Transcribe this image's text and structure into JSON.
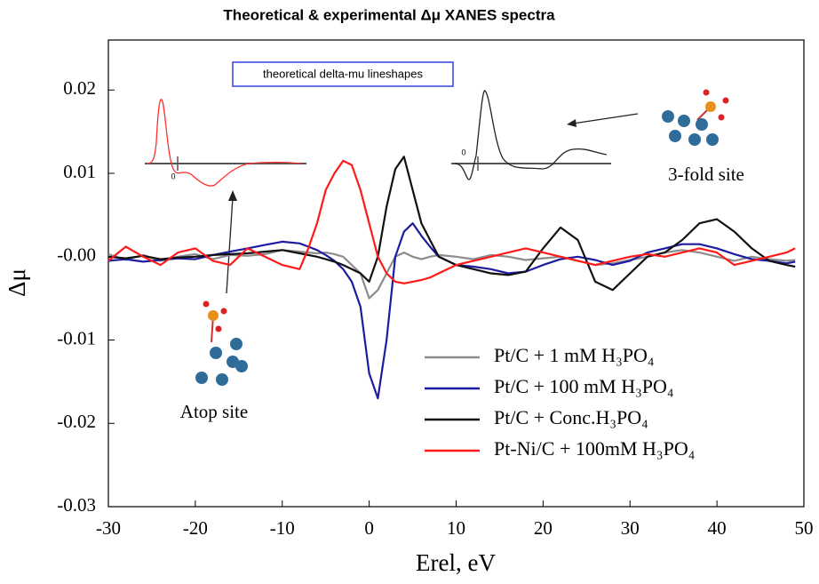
{
  "chart_data": {
    "type": "line",
    "title": "Theoretical & experimental Δμ XANES spectra",
    "x_label": "Erel, eV",
    "y_label": "Δμ",
    "xlim": [
      -30,
      50
    ],
    "ylim": [
      -0.03,
      0.026
    ],
    "xticks": [
      -30,
      -20,
      -10,
      0,
      10,
      20,
      30,
      40,
      50
    ],
    "yticks": [
      -0.03,
      -0.02,
      -0.01,
      {
        "value": 0,
        "label": "-0.00"
      },
      0.01,
      0.02
    ],
    "grid": false,
    "legend": "lower right",
    "x": [
      -30,
      -28,
      -26,
      -24,
      -22,
      -20,
      -18,
      -16,
      -14,
      -12,
      -10,
      -8,
      -7,
      -6,
      -5,
      -4,
      -3,
      -2,
      -1,
      0,
      1,
      2,
      3,
      4,
      5,
      6,
      7,
      8,
      10,
      12,
      14,
      16,
      18,
      20,
      22,
      24,
      26,
      28,
      30,
      32,
      34,
      36,
      38,
      40,
      42,
      44,
      46,
      48,
      49
    ],
    "series": [
      {
        "name": "Pt/C + 1 mM H₃PO₄",
        "color": "#8c8c8c",
        "values": [
          0.0003,
          -0.0004,
          0.0002,
          -0.0005,
          0,
          0.0003,
          -0.0003,
          0.0002,
          0.0001,
          0.0003,
          0.0008,
          0.0006,
          0.0005,
          0.0004,
          0.0005,
          0.0003,
          0,
          -0.001,
          -0.002,
          -0.005,
          -0.004,
          -0.002,
          0,
          0.0005,
          0,
          -0.0003,
          0,
          0.0002,
          0,
          -0.0003,
          0.0002,
          0,
          -0.0004,
          -0.0002,
          0,
          -0.0005,
          -0.001,
          -0.0008,
          -0.0004,
          0,
          0.0005,
          0.0008,
          0.0005,
          0,
          -0.0005,
          0,
          -0.0003,
          -0.0005,
          -0.0004
        ]
      },
      {
        "name": "Pt/C + 100 mM H₃PO₄",
        "color": "#1c1ca0",
        "values": [
          -0.0005,
          -0.0003,
          -0.0006,
          -0.0004,
          -0.0002,
          -0.0003,
          0.0002,
          0.0006,
          0.001,
          0.0014,
          0.0018,
          0.0016,
          0.0012,
          0.0008,
          0.0002,
          -0.0005,
          -0.0015,
          -0.003,
          -0.006,
          -0.014,
          -0.017,
          -0.01,
          0,
          0.003,
          0.004,
          0.0025,
          0.0012,
          0,
          -0.001,
          -0.0012,
          -0.0015,
          -0.002,
          -0.0018,
          -0.001,
          -0.0003,
          0,
          -0.0004,
          -0.001,
          -0.0005,
          0.0005,
          0.001,
          0.0015,
          0.0015,
          0.001,
          0.0003,
          -0.0003,
          -0.0005,
          -0.0008,
          -0.0006
        ]
      },
      {
        "name": "Pt/C + Conc.H₃PO₄",
        "color": "#111111",
        "values": [
          0,
          -0.0002,
          0.0001,
          -0.0003,
          -0.0001,
          0,
          0.0002,
          0.0003,
          0.0004,
          0.0006,
          0.0008,
          0.0004,
          0.0002,
          0,
          -0.0003,
          -0.0006,
          -0.001,
          -0.0015,
          -0.002,
          -0.003,
          0,
          0.006,
          0.0105,
          0.012,
          0.008,
          0.004,
          0.002,
          0,
          -0.001,
          -0.0015,
          -0.002,
          -0.0022,
          -0.0018,
          0.001,
          0.0035,
          0.002,
          -0.003,
          -0.004,
          -0.002,
          0,
          0.0005,
          0.002,
          0.004,
          0.0045,
          0.003,
          0.001,
          -0.0005,
          -0.001,
          -0.0012
        ]
      },
      {
        "name": "Pt-Ni/C + 100mM H₃PO₄",
        "color": "#ff1a1a",
        "values": [
          -0.0005,
          0.0012,
          0,
          -0.001,
          0.0005,
          0.001,
          -0.0005,
          -0.001,
          0.001,
          0,
          -0.001,
          -0.0015,
          0.001,
          0.004,
          0.008,
          0.01,
          0.0115,
          0.011,
          0.008,
          0.004,
          0,
          -0.002,
          -0.003,
          -0.0032,
          -0.003,
          -0.0028,
          -0.0025,
          -0.002,
          -0.001,
          -0.0005,
          0,
          0.0005,
          0.001,
          0.0005,
          0,
          -0.0005,
          -0.001,
          -0.0005,
          0,
          0.0003,
          0,
          0.0005,
          0.001,
          0.0005,
          -0.001,
          -0.0005,
          0,
          0.0005,
          0.001
        ]
      }
    ],
    "annotations": [
      "theoretical delta-mu lineshapes",
      "3-fold site",
      "Atop site",
      "0",
      "0"
    ]
  }
}
